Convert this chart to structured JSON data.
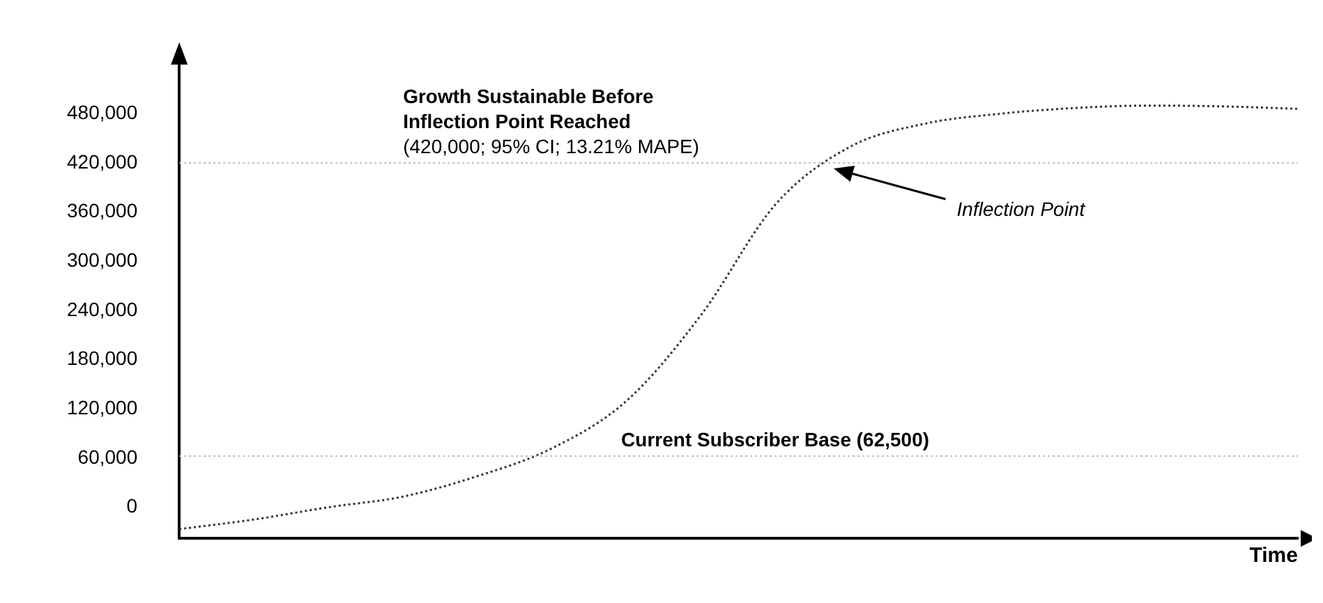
{
  "chart_data": {
    "type": "line",
    "xlabel": "Time",
    "categories": [
      null,
      null,
      null,
      null,
      null,
      null,
      null,
      null,
      null,
      null,
      null,
      null,
      null,
      null,
      null,
      null
    ],
    "series": [
      {
        "color": "#333333",
        "values": [
          -26700,
          -15000,
          0,
          13000,
          38000,
          72000,
          130000,
          235000,
          370000,
          440000,
          468000,
          480000,
          487000,
          490000,
          489000,
          486000
        ]
      }
    ],
    "ylim": [
      -38000,
      540000
    ],
    "yticks": [
      {
        "value": 0,
        "label": "0"
      },
      {
        "value": 60000,
        "label": "60,000"
      },
      {
        "value": 120000,
        "label": "120,000"
      },
      {
        "value": 180000,
        "label": "180,000"
      },
      {
        "value": 240000,
        "label": "240,000"
      },
      {
        "value": 300000,
        "label": "300,000"
      },
      {
        "value": 360000,
        "label": "360,000"
      },
      {
        "value": 420000,
        "label": "420,000"
      },
      {
        "value": 480000,
        "label": "480,000"
      }
    ],
    "ref_lines": [
      {
        "axis": "y",
        "value": 420000,
        "label": "Growth Sustainable Before Inflection Point Reached",
        "color": "#bbbbbb",
        "line_style": "dotted"
      },
      {
        "axis": "y",
        "value": 62500,
        "label": "Current Subscriber Base (62,500)",
        "color": "#bbbbbb",
        "line_style": "dotted"
      }
    ],
    "annotations": [
      "(420,000; 95% CI; 13.21% MAPE)",
      "Inflection Point"
    ],
    "grid": false,
    "legend": false,
    "tick_labels": "y",
    "marker": "none",
    "line_style": "dotted"
  }
}
